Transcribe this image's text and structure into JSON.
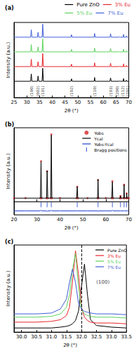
{
  "chart_data": [
    {
      "type": "line",
      "title": "(a)",
      "x_label": "2θ (°)",
      "y_label": "Intensity (a.u.)",
      "x": [
        25,
        31.5,
        31.77,
        32.0,
        34.2,
        34.42,
        34.7,
        36.0,
        36.25,
        36.5,
        47.3,
        47.54,
        47.8,
        56.4,
        56.6,
        56.8,
        62.6,
        62.86,
        63.1,
        66.2,
        66.38,
        66.6,
        67.8,
        67.96,
        68.1,
        68.95,
        69.1,
        69.3,
        70
      ],
      "series": [
        {
          "name": "Pure ZnO",
          "color": "#000000",
          "values": [
            100,
            100,
            145,
            100,
            100,
            132,
            100,
            100,
            180,
            100,
            100,
            115,
            100,
            100,
            123,
            100,
            100,
            121,
            100,
            100,
            103,
            100,
            100,
            117,
            100,
            100,
            107,
            100,
            100
          ]
        },
        {
          "name": "3% Eu",
          "color": "#e8262b",
          "values": [
            190,
            190,
            235,
            190,
            190,
            220,
            190,
            190,
            270,
            190,
            190,
            205,
            190,
            190,
            213,
            190,
            190,
            211,
            190,
            190,
            193,
            190,
            190,
            207,
            190,
            190,
            197,
            190,
            190
          ]
        },
        {
          "name": "5% Eu",
          "color": "#5fd35f",
          "values": [
            280,
            280,
            325,
            280,
            280,
            310,
            280,
            280,
            360,
            280,
            280,
            295,
            280,
            280,
            303,
            280,
            280,
            301,
            280,
            280,
            283,
            280,
            280,
            297,
            280,
            280,
            287,
            280,
            280
          ]
        },
        {
          "name": "7% Eu",
          "color": "#3f5fd8",
          "values": [
            370,
            370,
            415,
            370,
            370,
            400,
            370,
            370,
            450,
            370,
            370,
            385,
            370,
            370,
            393,
            370,
            370,
            391,
            370,
            370,
            373,
            370,
            370,
            387,
            370,
            370,
            377,
            370,
            370
          ]
        }
      ],
      "xlim": [
        25,
        70
      ],
      "xticks": [
        25,
        30,
        35,
        40,
        45,
        50,
        55,
        60,
        65,
        70
      ],
      "ylim": [
        0,
        460
      ],
      "tick_labels": "x",
      "legend": "top-right",
      "annotations": [
        {
          "text": "(100)",
          "x": 31.77,
          "y": 8
        },
        {
          "text": "(002)",
          "x": 34.42,
          "y": 8
        },
        {
          "text": "(101)",
          "x": 36.25,
          "y": 8
        },
        {
          "text": "(102)",
          "x": 47.54,
          "y": 8
        },
        {
          "text": "(110)",
          "x": 56.6,
          "y": 8
        },
        {
          "text": "(103)",
          "x": 62.86,
          "y": 8
        },
        {
          "text": "(200)",
          "x": 65.5,
          "y": 8
        },
        {
          "text": "(112)",
          "x": 67.6,
          "y": 8
        },
        {
          "text": "(201)",
          "x": 69.6,
          "y": 8
        }
      ]
    },
    {
      "type": "line",
      "title": "(b)",
      "x_label": "2θ (°)",
      "y_label": "Intensity (a.u.)",
      "x": [
        20,
        25,
        31.5,
        31.77,
        32.0,
        34.2,
        34.42,
        34.7,
        36.0,
        36.25,
        36.5,
        40,
        47.3,
        47.54,
        47.8,
        52,
        56.4,
        56.6,
        56.8,
        60,
        62.6,
        62.86,
        63.1,
        66.2,
        66.38,
        66.6,
        67.8,
        67.96,
        68.1,
        68.95,
        69.1,
        69.3,
        70
      ],
      "series": [
        {
          "name": "Yobs",
          "color": "#d62728",
          "type": "scatter",
          "marker": "circle",
          "values": [
            5,
            5,
            5,
            60,
            5,
            5,
            45,
            5,
            5,
            100,
            5,
            5,
            5,
            22,
            5,
            5,
            5,
            32,
            5,
            5,
            5,
            30,
            5,
            5,
            8,
            5,
            5,
            25,
            5,
            5,
            12,
            5,
            5
          ]
        },
        {
          "name": "Ycal",
          "color": "#000000",
          "line_style": "solid",
          "values": [
            5,
            5,
            5,
            59,
            5,
            5,
            46,
            5,
            5,
            99,
            5,
            5,
            5,
            22,
            5,
            5,
            5,
            33,
            5,
            5,
            5,
            29,
            5,
            5,
            8,
            5,
            5,
            25,
            5,
            5,
            12,
            5,
            5
          ]
        },
        {
          "name": "Yobs-Ycal",
          "color": "#1f3fd0",
          "line_style": "solid",
          "values": [
            -14,
            -14,
            -14,
            -13,
            -14,
            -14,
            -15,
            -14,
            -14,
            -13,
            -14,
            -14,
            -14,
            -14,
            -14,
            -14,
            -14,
            -15,
            -14,
            -14,
            -14,
            -13,
            -14,
            -14,
            -14,
            -14,
            -14,
            -14,
            -14,
            -14,
            -14,
            -14,
            -14
          ]
        },
        {
          "name": "Bragg positions",
          "color": "#1f3fd0",
          "type": "scatter",
          "marker": "vline",
          "x": [
            31.77,
            34.42,
            36.25,
            47.54,
            56.6,
            62.86,
            66.38,
            67.96,
            69.1
          ],
          "values": [
            -5,
            -5,
            -5,
            -5,
            -5,
            -5,
            -5,
            -5,
            -5
          ]
        }
      ],
      "xlim": [
        20,
        70
      ],
      "xticks": [
        20,
        30,
        40,
        50,
        60,
        70
      ],
      "ylim": [
        -20,
        110
      ],
      "tick_labels": "x",
      "legend": "top-right"
    },
    {
      "type": "line",
      "title": "(c)",
      "x_label": "2θ (°)",
      "y_label": "Intensity (a.u.)",
      "x": [
        29.75,
        30.5,
        31.0,
        31.3,
        31.5,
        31.6,
        31.7,
        31.8,
        31.9,
        32.0,
        32.1,
        32.2,
        32.3,
        32.5,
        33.0,
        33.5
      ],
      "series": [
        {
          "name": "Pure ZnO",
          "color": "#000000",
          "values": [
            5,
            5,
            5,
            6,
            7,
            8,
            10,
            14,
            25,
            55,
            82,
            45,
            15,
            8,
            6,
            5
          ]
        },
        {
          "name": "3% Eu",
          "color": "#e8262b",
          "values": [
            12,
            12,
            13,
            15,
            20,
            30,
            60,
            98,
            70,
            30,
            18,
            14,
            12,
            11,
            11,
            10
          ]
        },
        {
          "name": "5% Eu",
          "color": "#5fd35f",
          "values": [
            18,
            18,
            19,
            22,
            30,
            45,
            75,
            95,
            55,
            28,
            22,
            20,
            19,
            18,
            18,
            17
          ]
        },
        {
          "name": "7% Eu",
          "color": "#3f5fd8",
          "values": [
            22,
            22,
            23,
            28,
            40,
            60,
            76,
            60,
            35,
            28,
            25,
            24,
            23,
            22,
            22,
            21
          ]
        }
      ],
      "xlim": [
        29.75,
        33.5
      ],
      "xticks": [
        {
          "value": 30,
          "label": "30.0"
        },
        {
          "value": 30.5,
          "label": "30.5"
        },
        {
          "value": 31,
          "label": "31.0"
        },
        {
          "value": 31.5,
          "label": "31.5"
        },
        {
          "value": 32,
          "label": "32.0"
        },
        {
          "value": 32.5,
          "label": "32.5"
        },
        {
          "value": 33,
          "label": "33.0"
        },
        {
          "value": 33.5,
          "label": "33.5"
        }
      ],
      "ylim": [
        0,
        105
      ],
      "tick_labels": "x",
      "legend": "top-right",
      "markers": [
        {
          "x": 32.0,
          "line_style": "dashed"
        }
      ],
      "annotations": [
        {
          "text": "(100)",
          "x": 32.45,
          "y": 60
        }
      ]
    }
  ]
}
